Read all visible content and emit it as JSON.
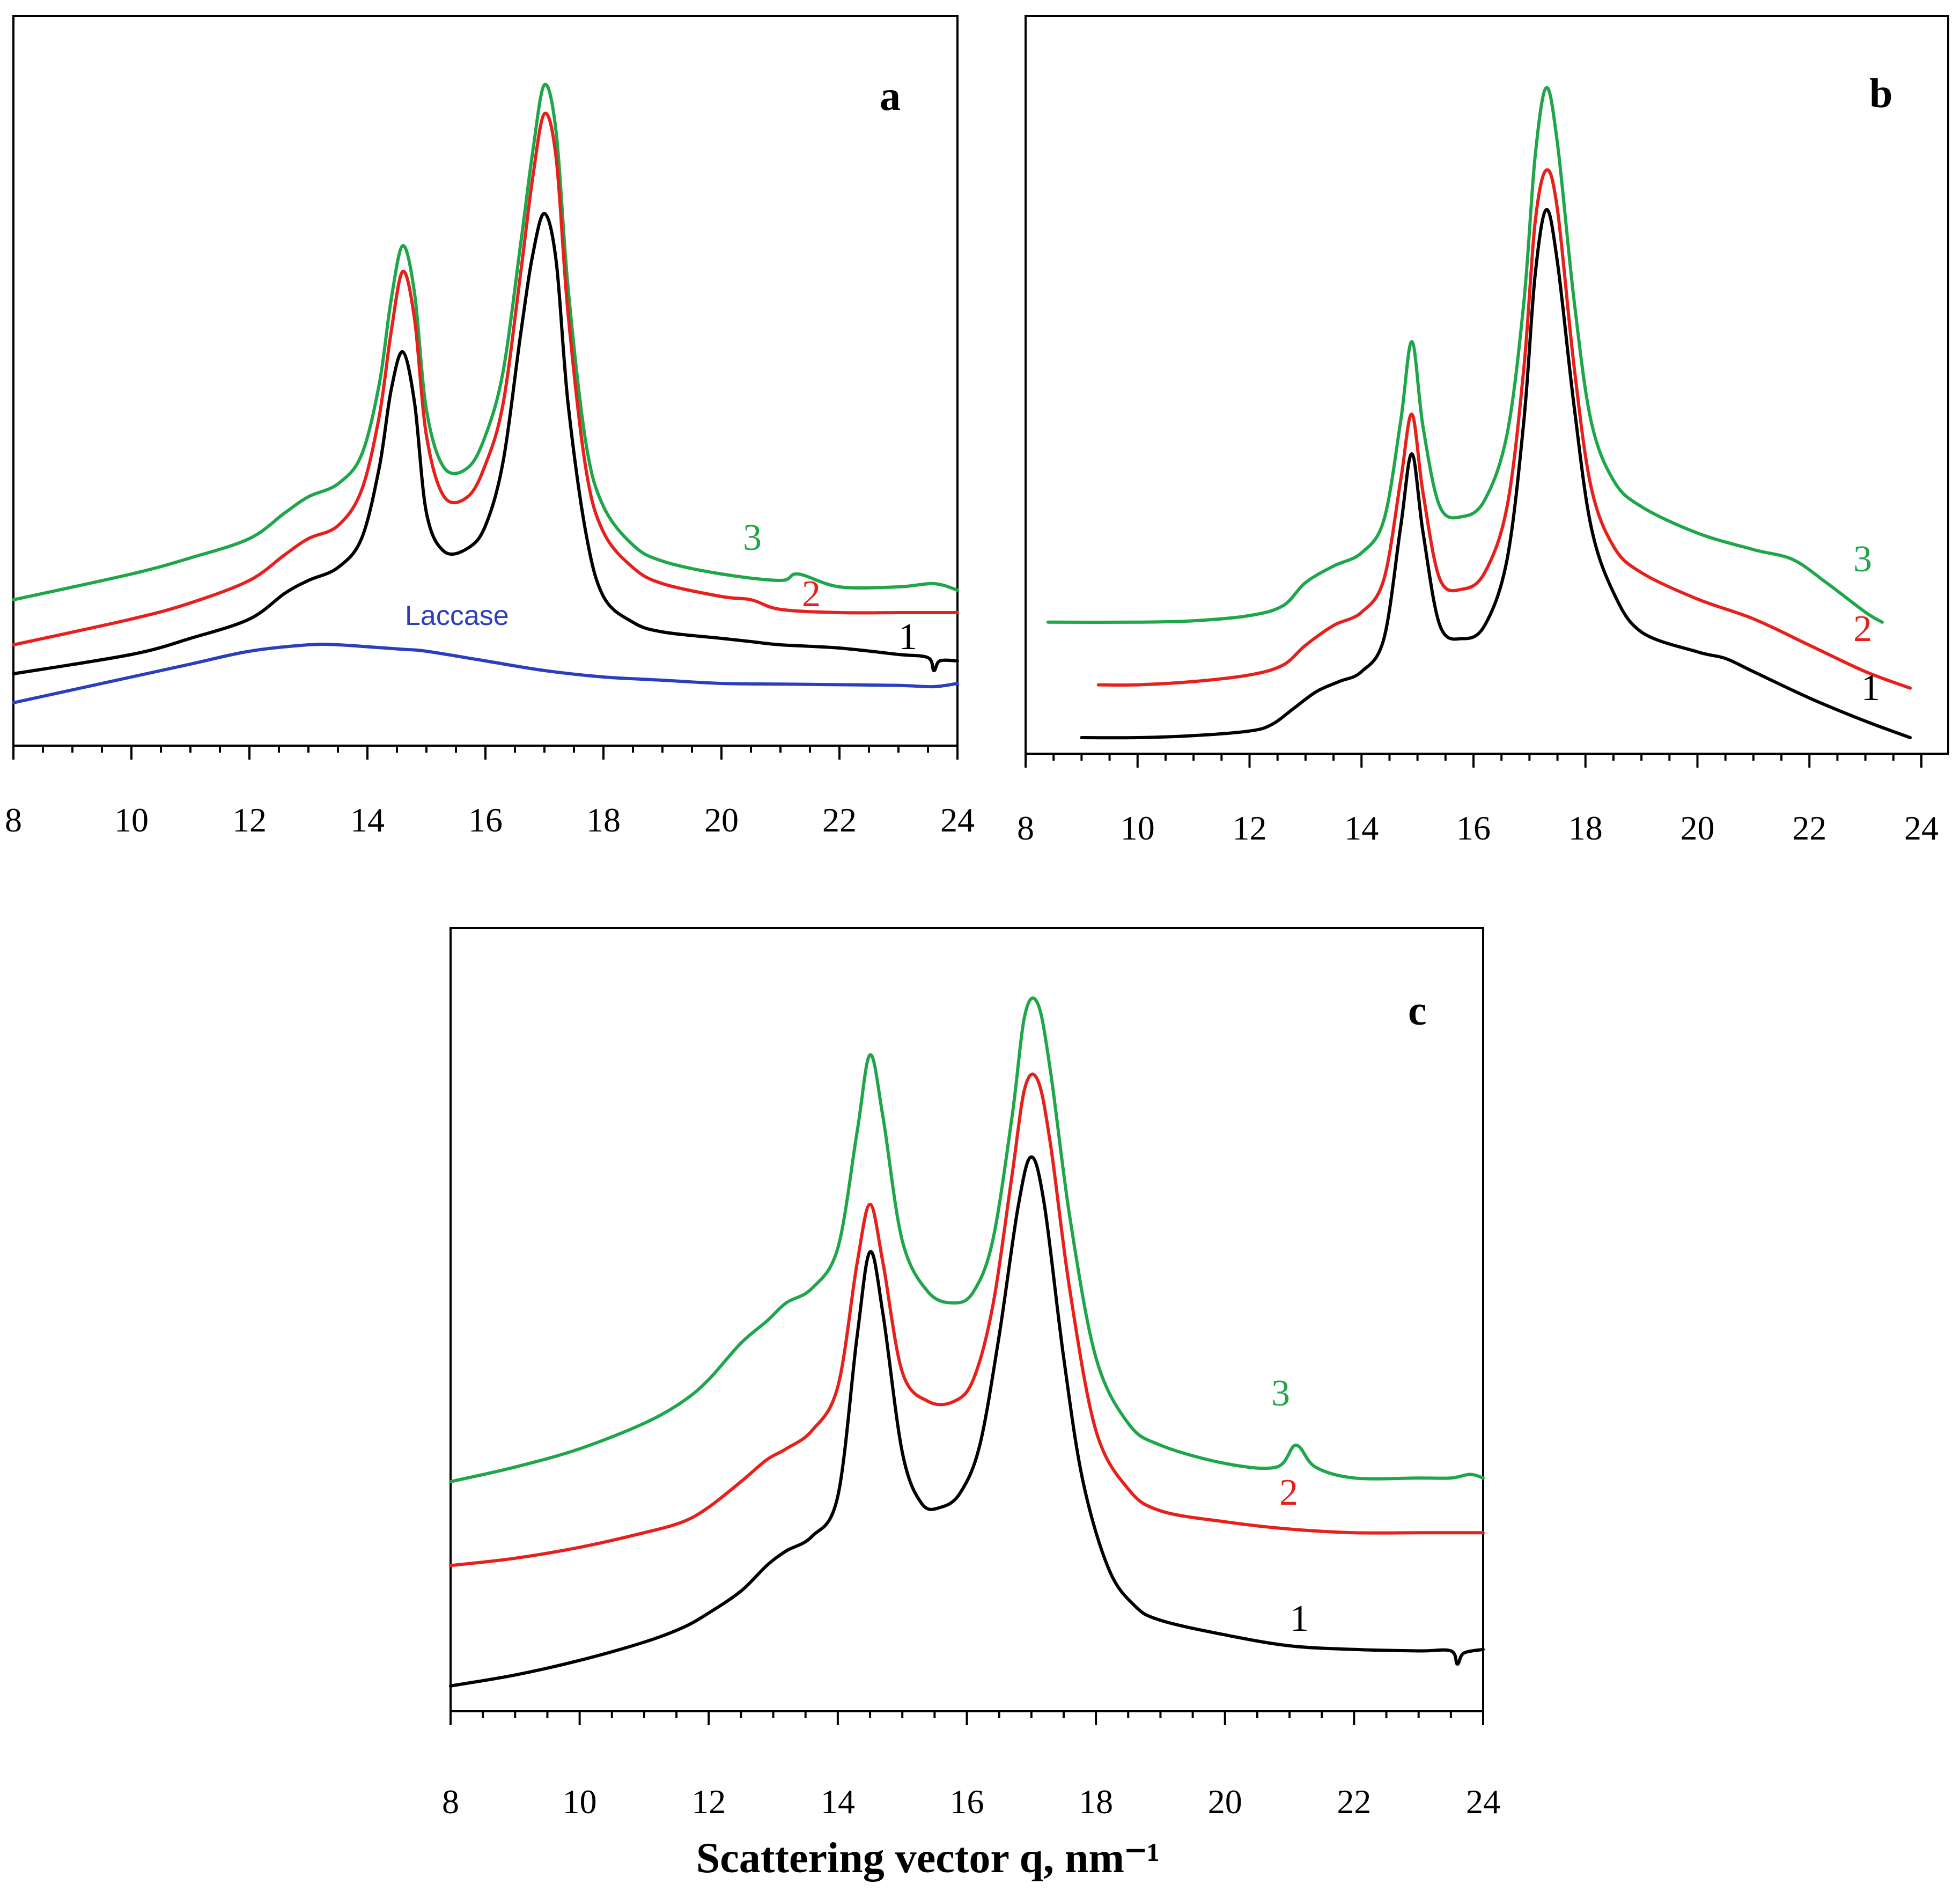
{
  "chart_data": [
    {
      "panel": "a",
      "type": "line",
      "xlim": [
        8,
        24
      ],
      "xticks": [
        "8",
        "10",
        "12",
        "14",
        "16",
        "18",
        "20",
        "22",
        "24"
      ],
      "ylabel": "",
      "series": [
        {
          "name": "3",
          "label": "3",
          "color": "#1fa64a",
          "x": [
            8,
            10,
            11,
            12,
            12.6,
            13,
            13.5,
            13.9,
            14.2,
            14.4,
            14.6,
            14.8,
            15.0,
            15.3,
            15.7,
            16.0,
            16.3,
            16.6,
            16.8,
            17.0,
            17.2,
            17.4,
            17.7,
            18.0,
            18.5,
            19.0,
            20.0,
            21.0,
            21.3,
            22.0,
            23.0,
            23.6,
            24.0
          ],
          "y": [
            0.185,
            0.225,
            0.25,
            0.28,
            0.32,
            0.345,
            0.365,
            0.41,
            0.52,
            0.65,
            0.735,
            0.66,
            0.48,
            0.39,
            0.39,
            0.44,
            0.54,
            0.74,
            0.88,
            0.985,
            0.91,
            0.67,
            0.43,
            0.33,
            0.27,
            0.245,
            0.225,
            0.215,
            0.225,
            0.205,
            0.205,
            0.21,
            0.2
          ]
        },
        {
          "name": "2",
          "label": "2",
          "color": "#e8201c",
          "x": [
            8,
            10,
            11,
            12,
            12.6,
            13,
            13.5,
            13.9,
            14.2,
            14.4,
            14.6,
            14.8,
            15.0,
            15.3,
            15.7,
            16.0,
            16.3,
            16.6,
            16.8,
            17.0,
            17.2,
            17.4,
            17.7,
            18.0,
            18.5,
            19.0,
            20.0,
            20.5,
            21.0,
            22.0,
            23.0,
            24.0
          ],
          "y": [
            0.115,
            0.155,
            0.18,
            0.215,
            0.255,
            0.28,
            0.3,
            0.355,
            0.47,
            0.6,
            0.695,
            0.62,
            0.44,
            0.345,
            0.345,
            0.395,
            0.49,
            0.695,
            0.84,
            0.94,
            0.87,
            0.63,
            0.39,
            0.29,
            0.235,
            0.21,
            0.19,
            0.185,
            0.17,
            0.165,
            0.165,
            0.165
          ]
        },
        {
          "name": "1",
          "label": "1",
          "color": "#000000",
          "x": [
            8,
            10,
            11,
            12,
            12.6,
            13,
            13.5,
            13.9,
            14.2,
            14.4,
            14.6,
            14.8,
            15.0,
            15.3,
            15.7,
            16.0,
            16.3,
            16.6,
            16.8,
            17.0,
            17.2,
            17.4,
            17.7,
            18.0,
            18.5,
            19.0,
            20.0,
            20.5,
            21.0,
            22.0,
            23.0,
            23.5,
            23.6,
            23.7,
            24.0
          ],
          "y": [
            0.07,
            0.1,
            0.125,
            0.155,
            0.195,
            0.215,
            0.235,
            0.28,
            0.39,
            0.51,
            0.57,
            0.49,
            0.32,
            0.26,
            0.265,
            0.3,
            0.4,
            0.6,
            0.72,
            0.785,
            0.71,
            0.49,
            0.29,
            0.19,
            0.15,
            0.135,
            0.125,
            0.12,
            0.115,
            0.11,
            0.1,
            0.095,
            0.075,
            0.09,
            0.09
          ]
        },
        {
          "name": "Laccase",
          "label": "Laccase",
          "color": "#2b3fbe",
          "x": [
            8,
            9,
            10,
            11,
            12,
            13,
            13.5,
            14,
            14.6,
            15,
            16,
            17,
            18,
            19,
            20,
            21,
            22,
            23,
            23.6,
            24
          ],
          "y": [
            0.025,
            0.045,
            0.065,
            0.085,
            0.105,
            0.115,
            0.115,
            0.112,
            0.108,
            0.105,
            0.09,
            0.075,
            0.065,
            0.06,
            0.055,
            0.054,
            0.053,
            0.052,
            0.05,
            0.055
          ]
        }
      ],
      "labels": [
        "3",
        "2",
        "1",
        "Laccase"
      ]
    },
    {
      "panel": "b",
      "type": "line",
      "xlim": [
        8,
        24
      ],
      "xticks": [
        "8",
        "10",
        "12",
        "14",
        "16",
        "18",
        "20",
        "22",
        "24"
      ],
      "series": [
        {
          "name": "3",
          "label": "3",
          "color": "#1fa64a",
          "x": [
            8.4,
            10,
            11,
            12,
            12.6,
            13,
            13.5,
            14,
            14.4,
            14.7,
            14.9,
            15.1,
            15.4,
            15.8,
            16.2,
            16.6,
            16.9,
            17.1,
            17.3,
            17.5,
            17.8,
            18.1,
            18.5,
            19.0,
            20.0,
            21.0,
            21.7,
            22.3,
            23.0,
            23.3
          ],
          "y": [
            0.175,
            0.175,
            0.177,
            0.185,
            0.2,
            0.235,
            0.26,
            0.28,
            0.33,
            0.48,
            0.6,
            0.47,
            0.35,
            0.335,
            0.36,
            0.46,
            0.66,
            0.88,
            0.985,
            0.9,
            0.66,
            0.48,
            0.39,
            0.35,
            0.31,
            0.285,
            0.27,
            0.235,
            0.19,
            0.175
          ]
        },
        {
          "name": "2",
          "label": "2",
          "color": "#e8201c",
          "x": [
            9.3,
            10,
            11,
            12,
            12.6,
            13,
            13.5,
            14,
            14.4,
            14.7,
            14.9,
            15.1,
            15.4,
            15.8,
            16.2,
            16.6,
            16.9,
            17.1,
            17.3,
            17.5,
            17.8,
            18.1,
            18.5,
            19.0,
            20.0,
            21.0,
            22.0,
            23.0,
            23.8
          ],
          "y": [
            0.08,
            0.08,
            0.085,
            0.095,
            0.11,
            0.14,
            0.17,
            0.19,
            0.24,
            0.39,
            0.49,
            0.37,
            0.24,
            0.225,
            0.25,
            0.35,
            0.56,
            0.78,
            0.86,
            0.8,
            0.56,
            0.38,
            0.29,
            0.25,
            0.21,
            0.18,
            0.14,
            0.1,
            0.075
          ]
        },
        {
          "name": "1",
          "label": "1",
          "color": "#000000",
          "x": [
            9.0,
            10,
            11,
            12,
            12.4,
            12.8,
            13.2,
            13.6,
            14.0,
            14.4,
            14.7,
            14.9,
            15.1,
            15.4,
            15.8,
            16.2,
            16.6,
            16.9,
            17.1,
            17.3,
            17.5,
            17.8,
            18.1,
            18.5,
            19.0,
            20.0,
            20.5,
            21.0,
            22.0,
            23.0,
            23.8
          ],
          "y": [
            0.0,
            0.0,
            0.003,
            0.01,
            0.02,
            0.045,
            0.07,
            0.085,
            0.1,
            0.15,
            0.32,
            0.43,
            0.31,
            0.17,
            0.15,
            0.17,
            0.27,
            0.48,
            0.7,
            0.8,
            0.72,
            0.5,
            0.32,
            0.22,
            0.16,
            0.13,
            0.12,
            0.1,
            0.06,
            0.025,
            0.0
          ]
        }
      ],
      "labels": [
        "3",
        "2",
        "1"
      ]
    },
    {
      "panel": "c",
      "type": "line",
      "xlim": [
        8,
        24
      ],
      "xticks": [
        "8",
        "10",
        "12",
        "14",
        "16",
        "18",
        "20",
        "22",
        "24"
      ],
      "xlabel": "Scattering vector q, nm⁻¹",
      "series": [
        {
          "name": "3",
          "label": "3",
          "color": "#1fa64a",
          "x": [
            8,
            9,
            10,
            11,
            11.6,
            12,
            12.5,
            12.9,
            13.2,
            13.6,
            14.0,
            14.3,
            14.5,
            14.7,
            15.0,
            15.4,
            15.8,
            16.1,
            16.4,
            16.7,
            16.9,
            17.1,
            17.3,
            17.6,
            18.0,
            18.5,
            19.0,
            20.0,
            20.8,
            21.1,
            21.4,
            22.0,
            23.0,
            23.5,
            23.8,
            24.0
          ],
          "y": [
            0.3,
            0.32,
            0.345,
            0.38,
            0.41,
            0.44,
            0.49,
            0.52,
            0.545,
            0.565,
            0.62,
            0.78,
            0.885,
            0.8,
            0.63,
            0.56,
            0.545,
            0.56,
            0.63,
            0.8,
            0.94,
            0.955,
            0.86,
            0.66,
            0.47,
            0.38,
            0.35,
            0.325,
            0.32,
            0.35,
            0.32,
            0.305,
            0.305,
            0.305,
            0.31,
            0.305
          ]
        },
        {
          "name": "2",
          "label": "2",
          "color": "#e8201c",
          "x": [
            8,
            9,
            10,
            11,
            11.6,
            12,
            12.5,
            12.9,
            13.2,
            13.6,
            14.0,
            14.3,
            14.5,
            14.7,
            15.0,
            15.4,
            15.8,
            16.1,
            16.4,
            16.7,
            16.9,
            17.1,
            17.3,
            17.6,
            18.0,
            18.5,
            19.0,
            20.0,
            21.0,
            22.0,
            23.0,
            24.0
          ],
          "y": [
            0.185,
            0.195,
            0.21,
            0.23,
            0.245,
            0.265,
            0.3,
            0.33,
            0.345,
            0.37,
            0.43,
            0.6,
            0.68,
            0.6,
            0.45,
            0.41,
            0.41,
            0.44,
            0.54,
            0.72,
            0.84,
            0.85,
            0.76,
            0.56,
            0.37,
            0.29,
            0.26,
            0.245,
            0.235,
            0.23,
            0.23,
            0.23
          ]
        },
        {
          "name": "1",
          "label": "1",
          "color": "#000000",
          "x": [
            8,
            9,
            10,
            11,
            11.6,
            12,
            12.5,
            12.9,
            13.2,
            13.6,
            14.0,
            14.3,
            14.5,
            14.7,
            15.0,
            15.3,
            15.6,
            15.9,
            16.2,
            16.5,
            16.8,
            17.0,
            17.2,
            17.5,
            17.8,
            18.2,
            18.6,
            19.0,
            20.0,
            21.0,
            22.0,
            23.0,
            23.5,
            23.6,
            23.7,
            24.0
          ],
          "y": [
            0.02,
            0.035,
            0.055,
            0.08,
            0.1,
            0.12,
            0.15,
            0.185,
            0.205,
            0.225,
            0.28,
            0.5,
            0.615,
            0.53,
            0.34,
            0.27,
            0.265,
            0.285,
            0.35,
            0.5,
            0.68,
            0.745,
            0.68,
            0.47,
            0.3,
            0.18,
            0.13,
            0.11,
            0.09,
            0.075,
            0.07,
            0.068,
            0.068,
            0.05,
            0.065,
            0.07
          ]
        }
      ],
      "labels": [
        "3",
        "2",
        "1"
      ]
    }
  ]
}
